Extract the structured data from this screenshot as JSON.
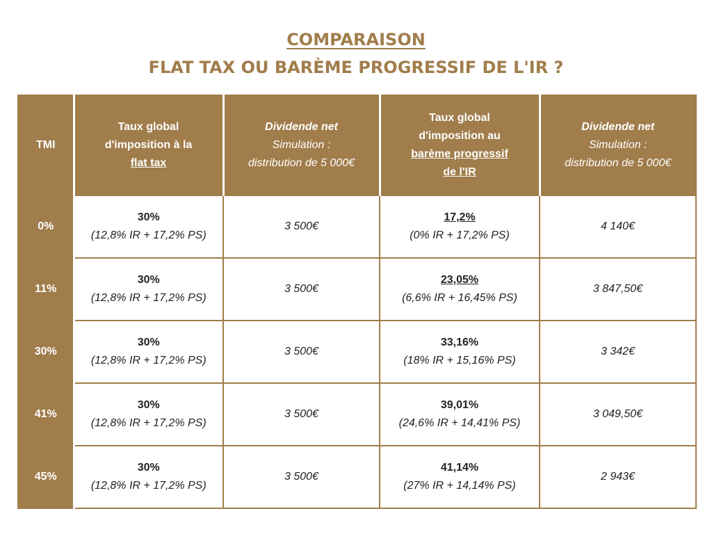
{
  "title": {
    "line1": "COMPARAISON",
    "line2": "FLAT TAX OU BARÈME PROGRESSIF DE L'IR ?"
  },
  "headers": {
    "tmi": "TMI",
    "flat_tax": {
      "line1": "Taux global",
      "line2": "d'imposition à la",
      "line3": "flat tax"
    },
    "dividende_flat": {
      "line1": "Dividende net",
      "line2": "Simulation :",
      "line3": "distribution de 5 000€"
    },
    "bareme": {
      "line1": "Taux global",
      "line2": "d'imposition au",
      "line3": "barème progressif",
      "line4": "de l'IR"
    },
    "dividende_bareme": {
      "line1": "Dividende net",
      "line2": "Simulation :",
      "line3": "distribution de 5 000€"
    }
  },
  "rows": [
    {
      "tmi": "0%",
      "flat_rate": "30%",
      "flat_detail": "(12,8% IR + 17,2% PS)",
      "flat_div": "3 500€",
      "bareme_rate": "17,2%",
      "bareme_detail": "(0% IR + 17,2% PS)",
      "bareme_div": "4 140€"
    },
    {
      "tmi": "11%",
      "flat_rate": "30%",
      "flat_detail": "(12,8% IR + 17,2% PS)",
      "flat_div": "3 500€",
      "bareme_rate": "23,05%",
      "bareme_detail": "(6,6% IR + 16,45% PS)",
      "bareme_div": "3 847,50€"
    },
    {
      "tmi": "30%",
      "flat_rate": "30%",
      "flat_detail": "(12,8% IR + 17,2% PS)",
      "flat_div": "3 500€",
      "bareme_rate": "33,16%",
      "bareme_detail": "(18% IR + 15,16% PS)",
      "bareme_div": "3 342€"
    },
    {
      "tmi": "41%",
      "flat_rate": "30%",
      "flat_detail": "(12,8% IR + 17,2% PS)",
      "flat_div": "3 500€",
      "bareme_rate": "39,01%",
      "bareme_detail": "(24,6% IR + 14,41% PS)",
      "bareme_div": "3 049,50€"
    },
    {
      "tmi": "45%",
      "flat_rate": "30%",
      "flat_detail": "(12,8% IR + 17,2% PS)",
      "flat_div": "3 500€",
      "bareme_rate": "41,14%",
      "bareme_detail": "(27% IR + 14,14% PS)",
      "bareme_div": "2 943€"
    }
  ],
  "colors": {
    "accent": "#a07d4b",
    "header_text": "#ffffff",
    "body_text": "#222222"
  }
}
